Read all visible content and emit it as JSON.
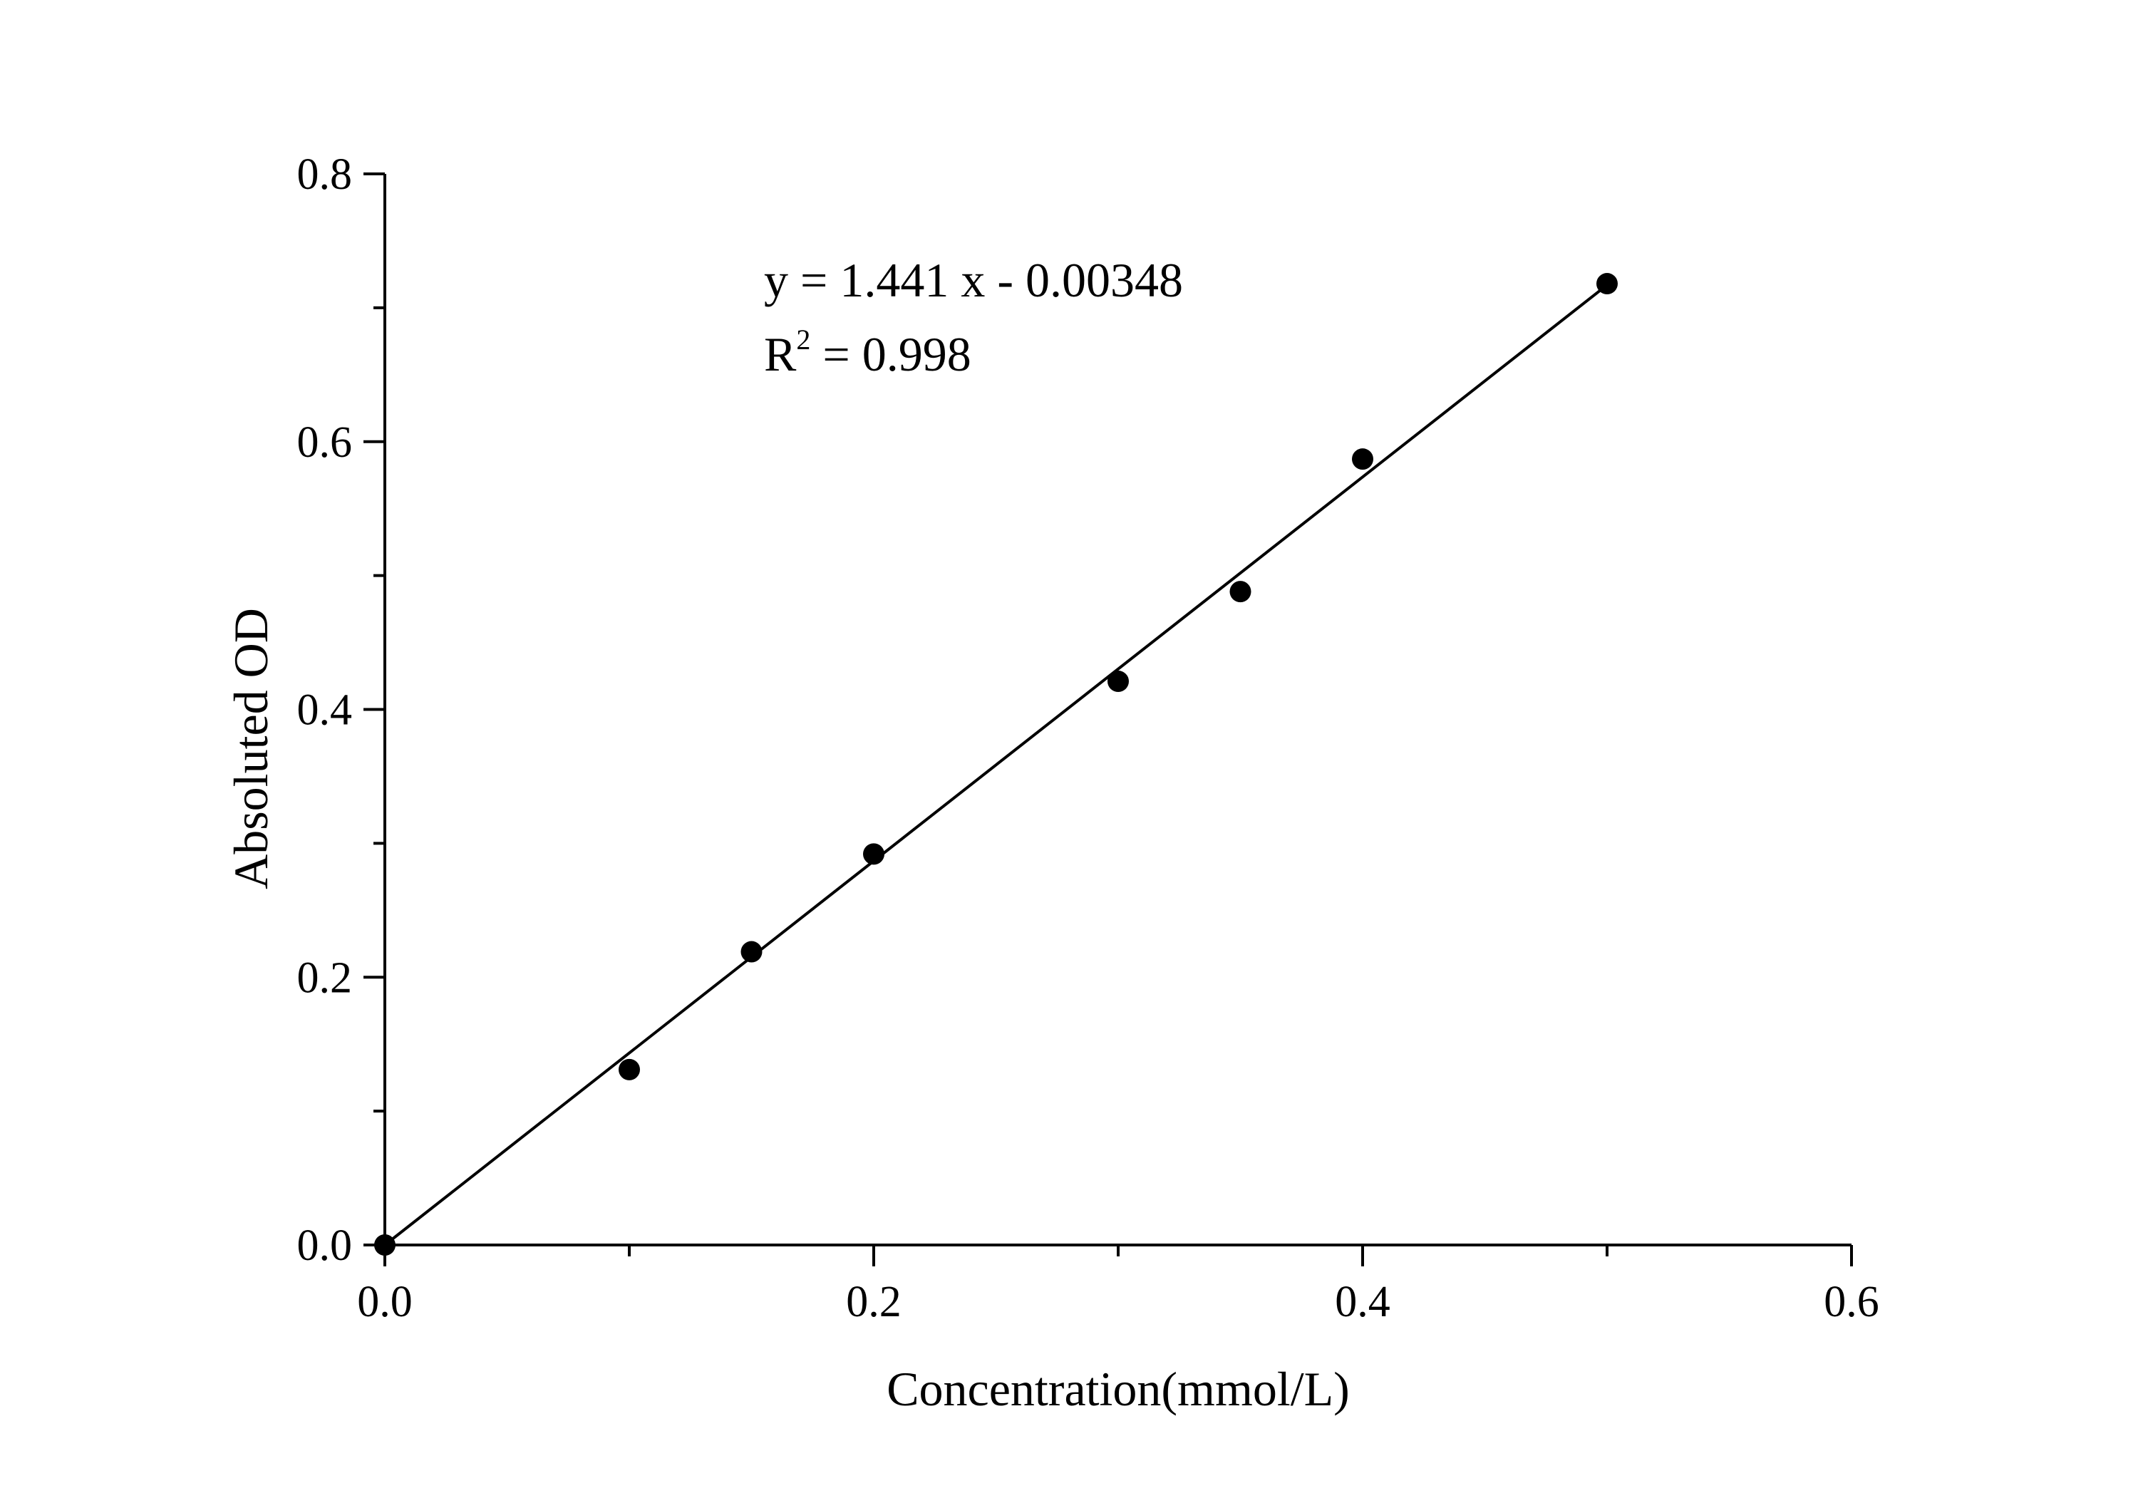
{
  "chart_data": {
    "type": "scatter",
    "xlabel": "Concentration(mmol/L)",
    "ylabel": "Absoluted OD",
    "xlim": [
      0,
      0.6
    ],
    "ylim": [
      0,
      0.8
    ],
    "x_ticks": [
      "0.0",
      "0.2",
      "0.4",
      "0.6"
    ],
    "y_ticks": [
      "0.0",
      "0.2",
      "0.4",
      "0.6",
      "0.8"
    ],
    "grid": false,
    "series": [
      {
        "x": [
          0.0,
          0.1,
          0.15,
          0.2,
          0.3,
          0.35,
          0.4,
          0.5
        ],
        "y": [
          0.0,
          0.131,
          0.219,
          0.292,
          0.421,
          0.488,
          0.587,
          0.718
        ]
      }
    ],
    "fit": {
      "slope": 1.441,
      "intercept": -0.00348,
      "x_range": [
        0.0,
        0.5
      ]
    },
    "annotations": {
      "equation": "y = 1.441 x - 0.00348",
      "r2_prefix": "R",
      "r2_sup": "2",
      "r2_suffix": " = 0.998"
    },
    "colors": {
      "marker": "#000000",
      "line": "#000000",
      "axis": "#000000"
    }
  }
}
